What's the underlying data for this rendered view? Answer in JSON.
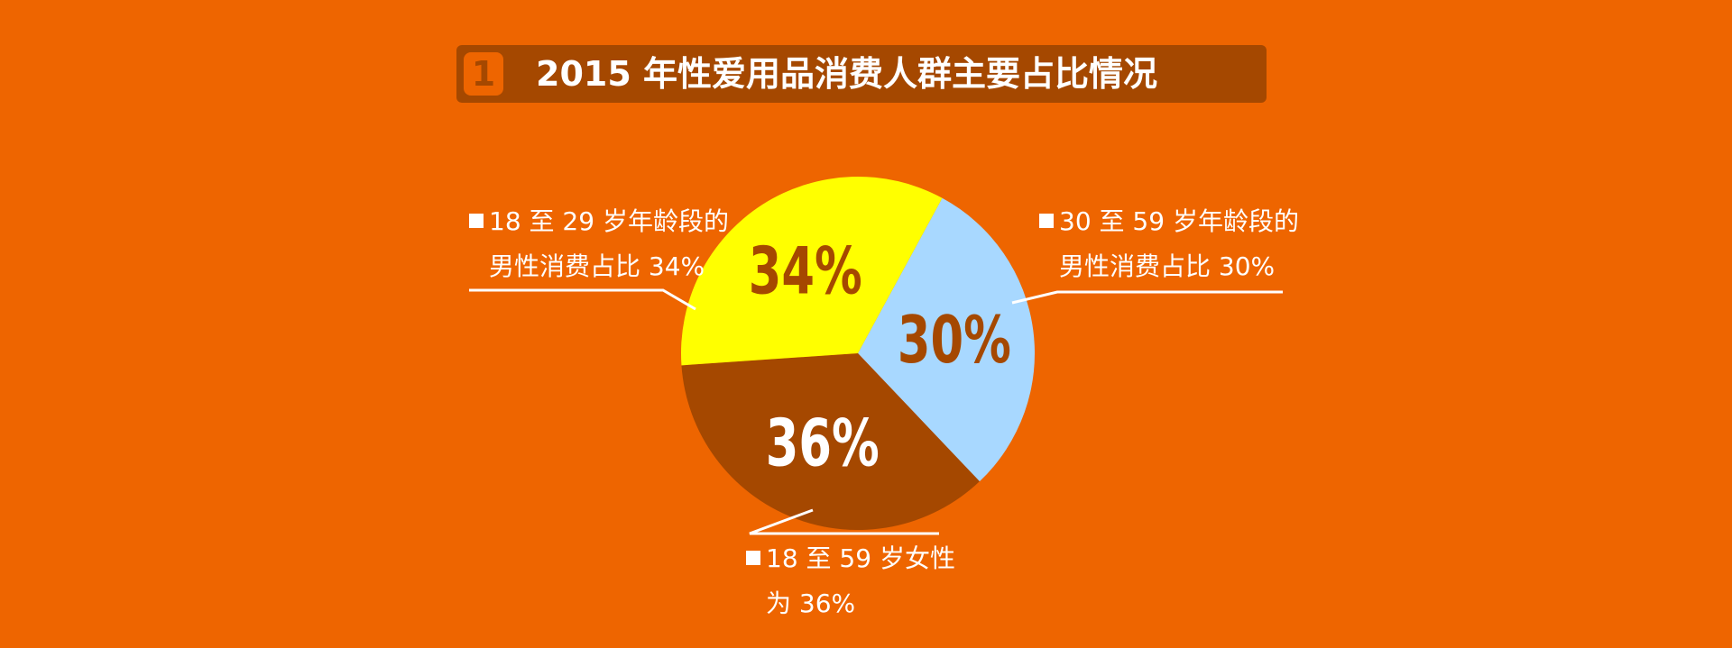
{
  "title": {
    "number": "1",
    "text": "2015 年性爱用品消费人群主要占比情况"
  },
  "chart_data": {
    "type": "pie",
    "title": "2015 年性爱用品消费人群主要占比情况",
    "slices": [
      {
        "key": "s30",
        "value": 30,
        "label": "30%",
        "color": "#A8D8FF",
        "label_color": "#A54800"
      },
      {
        "key": "s36",
        "value": 36,
        "label": "36%",
        "color": "#A54800",
        "label_color": "#FFFFFF"
      },
      {
        "key": "s34",
        "value": 34,
        "label": "34%",
        "color": "#FFFF00",
        "label_color": "#A54800"
      }
    ]
  },
  "callouts": {
    "left": {
      "line1": "18 至 29 岁年龄段的",
      "line2": "男性消费占比 34%"
    },
    "right": {
      "line1": "30 至 59 岁年龄段的",
      "line2": "男性消费占比 30%"
    },
    "bottom": {
      "line1": "18 至 59 岁女性",
      "line2": "为 36%"
    }
  },
  "colors": {
    "background": "#EE6500",
    "title_bar": "#A54800",
    "callout_text": "#FFFFFF"
  }
}
